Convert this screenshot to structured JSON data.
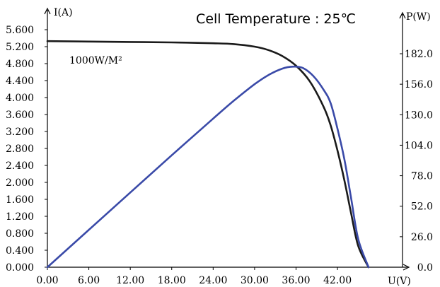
{
  "chart_data": {
    "type": "line",
    "title": "Cell Temperature : 25℃",
    "annotation": "1000W/M²",
    "xlabel": "U(V)",
    "ylabel_left": "I(A)",
    "ylabel_right": "P(W)",
    "xlim": [
      0,
      46.5
    ],
    "ylim_left": [
      0,
      5.6
    ],
    "ylim_right": [
      0,
      182
    ],
    "x_ticks": [
      "0.00",
      "6.00",
      "12.00",
      "18.00",
      "24.00",
      "30.00",
      "36.00",
      "42.00"
    ],
    "y_left_ticks": [
      "0.000",
      "0.400",
      "0.800",
      "1.200",
      "1.600",
      "2.000",
      "2.400",
      "2.800",
      "3.200",
      "3.600",
      "4.000",
      "4.400",
      "4.800",
      "5.200",
      "5.600"
    ],
    "y_right_ticks": [
      "0.0",
      "26.0",
      "52.0",
      "78.0",
      "104.0",
      "130.0",
      "156.0",
      "182.0"
    ],
    "grid": false,
    "series": [
      {
        "axis": "left",
        "color": "#1a1a1a",
        "points": [
          [
            0,
            5.33
          ],
          [
            6,
            5.32
          ],
          [
            12,
            5.31
          ],
          [
            18,
            5.3
          ],
          [
            24,
            5.28
          ],
          [
            27,
            5.26
          ],
          [
            30,
            5.2
          ],
          [
            32,
            5.12
          ],
          [
            34,
            4.98
          ],
          [
            36,
            4.75
          ],
          [
            38,
            4.38
          ],
          [
            40,
            3.78
          ],
          [
            41,
            3.35
          ],
          [
            42,
            2.75
          ],
          [
            43,
            2.05
          ],
          [
            44,
            1.25
          ],
          [
            45,
            0.5
          ],
          [
            46.5,
            0
          ]
        ]
      },
      {
        "axis": "right",
        "color": "#3a4aa8",
        "points": [
          [
            0,
            0
          ],
          [
            6,
            31.9
          ],
          [
            12,
            63.7
          ],
          [
            18,
            95.4
          ],
          [
            24,
            126.7
          ],
          [
            27,
            142
          ],
          [
            30,
            156
          ],
          [
            32,
            163.8
          ],
          [
            34,
            169.3
          ],
          [
            35.5,
            171
          ],
          [
            37,
            169.8
          ],
          [
            38.5,
            163
          ],
          [
            40,
            151.2
          ],
          [
            41,
            140
          ],
          [
            42,
            118
          ],
          [
            43,
            92
          ],
          [
            44,
            58
          ],
          [
            45,
            24
          ],
          [
            46.5,
            0
          ]
        ]
      }
    ]
  }
}
